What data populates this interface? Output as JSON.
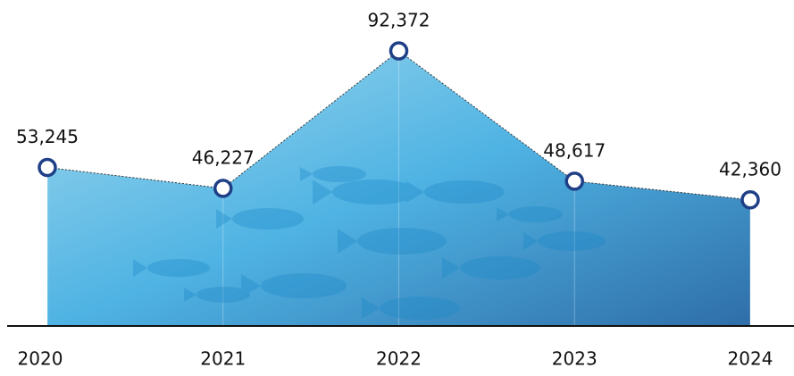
{
  "chart_data": {
    "type": "area",
    "categories": [
      "2020",
      "2021",
      "2022",
      "2023",
      "2024"
    ],
    "values": [
      53245,
      46227,
      92372,
      48617,
      42360
    ],
    "value_labels": [
      "53,245",
      "46,227",
      "92,372",
      "48,617",
      "42,360"
    ],
    "color": "#1f3f86"
  }
}
